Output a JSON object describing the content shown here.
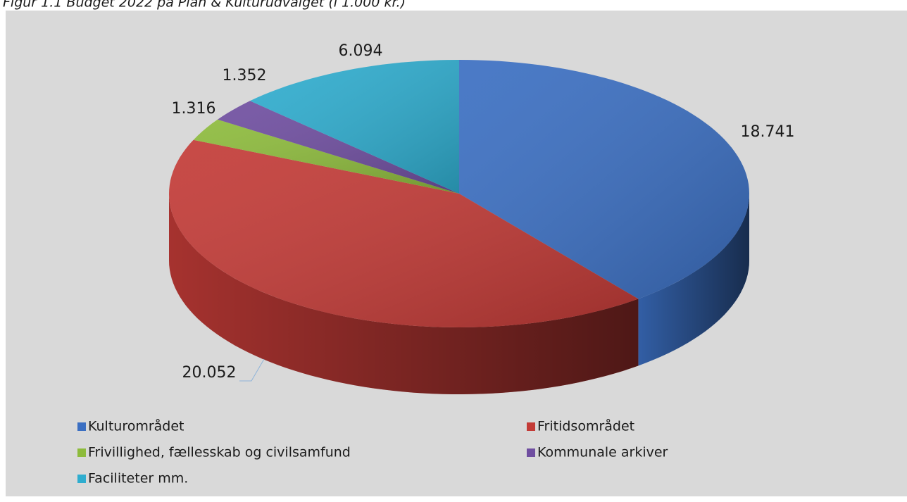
{
  "chart_data": {
    "type": "pie",
    "title": "Figur 1.1 Budget 2022 på Plan & Kulturudvalget (i 1.000 kr.)",
    "categories": [
      "Kulturområdet",
      "Fritidsområdet",
      "Frivillighed, fællesskab og civilsamfund",
      "Kommunale arkiver",
      "Faciliteter mm."
    ],
    "values": [
      18741,
      20052,
      1316,
      1352,
      6094
    ],
    "value_labels": [
      "18.741",
      "20.052",
      "1.316",
      "1.352",
      "6.094"
    ],
    "colors": [
      "#3b6fc2",
      "#c33b37",
      "#8dbb3c",
      "#6f4ea0",
      "#2fadcf"
    ],
    "legend": "bottom"
  }
}
